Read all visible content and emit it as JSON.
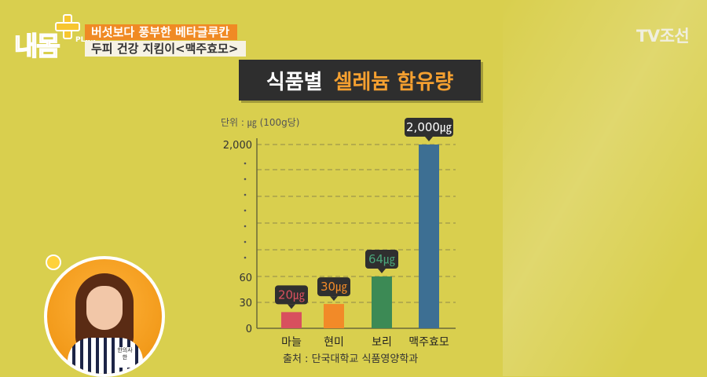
{
  "overlay": {
    "logo_text": "내몸",
    "logo_plus_label": "PLUS",
    "caption_line1": "버섯보다 풍부한 베타글루칸",
    "caption_line2": "두피 건강 지킴이<맥주효모>",
    "channel_logo": "TV조선"
  },
  "portrait": {
    "nametag_text": "한의사 한"
  },
  "colors": {
    "background": "#d9cf4e",
    "title_box": "#2e2e2e",
    "title_accent": "#f5a030"
  },
  "chart_data": {
    "type": "bar",
    "title_part1": "식품별",
    "title_part2": "셀레늄 함유량",
    "unit_note": "단위 : ㎍ (100g당)",
    "source": "출처 : 단국대학교 식품영양학과",
    "categories": [
      "마늘",
      "현미",
      "보리",
      "맥주효모"
    ],
    "values": [
      20,
      30,
      64,
      2000
    ],
    "data_labels": [
      "20㎍",
      "30㎍",
      "64㎍",
      "2,000㎍"
    ],
    "bar_colors": [
      "#d8505e",
      "#f28a28",
      "#3c8a55",
      "#3d6f93"
    ],
    "label_colors": [
      "#d8505e",
      "#f28a28",
      "#4aa57a",
      "#ffffff"
    ],
    "y_ticks": [
      {
        "value": 0,
        "label": "0"
      },
      {
        "value": 30,
        "label": "30"
      },
      {
        "value": 60,
        "label": "60"
      },
      {
        "value": 2000,
        "label": "2,000"
      }
    ],
    "axis_break": true,
    "grid": true
  }
}
